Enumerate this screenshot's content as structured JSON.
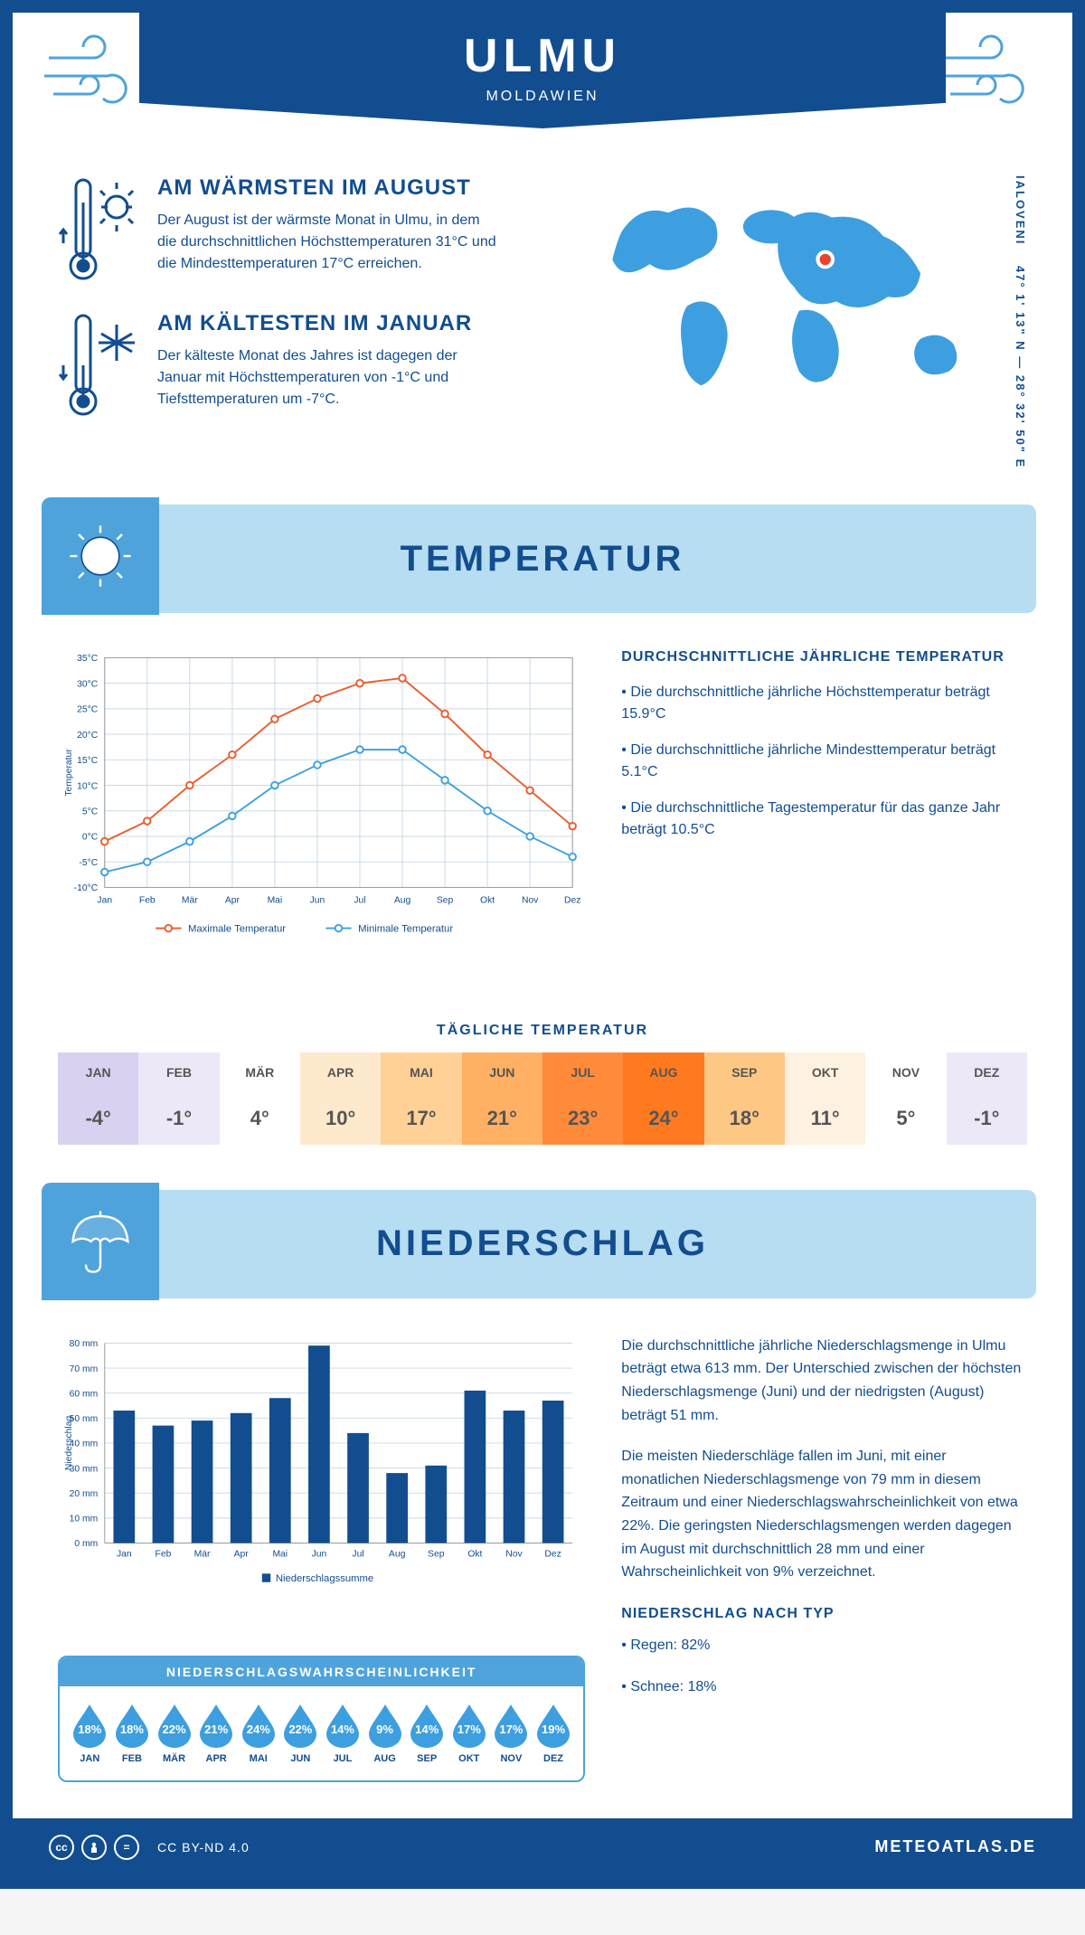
{
  "colors": {
    "primary": "#124d8f",
    "secondary": "#4fa3db",
    "light_blue": "#b7ddf2",
    "orange": "#e85c2a",
    "line_blue": "#3d9fe0"
  },
  "header": {
    "city": "ULMU",
    "country": "MOLDAWIEN"
  },
  "coordinates": "47° 1' 13\" N — 28° 32' 50\" E",
  "coords_sub": "IALOVENI",
  "intro": {
    "warm": {
      "title": "AM WÄRMSTEN IM AUGUST",
      "text": "Der August ist der wärmste Monat in Ulmu, in dem die durchschnittlichen Höchsttemperaturen 31°C und die Mindesttemperaturen 17°C erreichen."
    },
    "cold": {
      "title": "AM KÄLTESTEN IM JANUAR",
      "text": "Der kälteste Monat des Jahres ist dagegen der Januar mit Höchsttemperaturen von -1°C und Tiefsttemperaturen um -7°C."
    }
  },
  "temperature": {
    "section_title": "TEMPERATUR",
    "chart": {
      "type": "line",
      "months": [
        "Jan",
        "Feb",
        "Mär",
        "Apr",
        "Mai",
        "Jun",
        "Jul",
        "Aug",
        "Sep",
        "Okt",
        "Nov",
        "Dez"
      ],
      "series": [
        {
          "name": "Maximale Temperatur",
          "color": "#e85c2a",
          "values": [
            -1,
            3,
            10,
            16,
            23,
            27,
            30,
            31,
            24,
            16,
            9,
            2
          ]
        },
        {
          "name": "Minimale Temperatur",
          "color": "#3d9fe0",
          "values": [
            -7,
            -5,
            -1,
            4,
            10,
            14,
            17,
            17,
            11,
            5,
            0,
            -4
          ]
        }
      ],
      "ylim": [
        -10,
        35
      ],
      "ytick_step": 5,
      "y_suffix": "°C",
      "ylabel": "Temperatur",
      "grid_color": "#c8d8e6",
      "marker": "circle",
      "line_width": 2
    },
    "text": {
      "heading": "DURCHSCHNITTLICHE JÄHRLICHE TEMPERATUR",
      "b1": "• Die durchschnittliche jährliche Höchsttemperatur beträgt 15.9°C",
      "b2": "• Die durchschnittliche jährliche Mindesttemperatur beträgt 5.1°C",
      "b3": "• Die durchschnittliche Tagestemperatur für das ganze Jahr beträgt 10.5°C"
    },
    "daily": {
      "title": "TÄGLICHE TEMPERATUR",
      "months": [
        "JAN",
        "FEB",
        "MÄR",
        "APR",
        "MAI",
        "JUN",
        "JUL",
        "AUG",
        "SEP",
        "OKT",
        "NOV",
        "DEZ"
      ],
      "values": [
        "-4°",
        "-1°",
        "4°",
        "10°",
        "17°",
        "21°",
        "23°",
        "24°",
        "18°",
        "11°",
        "5°",
        "-1°"
      ],
      "colors": [
        "#d9d1f0",
        "#ece8f8",
        "#ffffff",
        "#ffe9cc",
        "#ffd197",
        "#ffb062",
        "#ff8a3a",
        "#ff7a1f",
        "#ffc784",
        "#fff1e0",
        "#ffffff",
        "#ece8f8"
      ]
    }
  },
  "precipitation": {
    "section_title": "NIEDERSCHLAG",
    "chart": {
      "type": "bar",
      "months": [
        "Jan",
        "Feb",
        "Mär",
        "Apr",
        "Mai",
        "Jun",
        "Jul",
        "Aug",
        "Sep",
        "Okt",
        "Nov",
        "Dez"
      ],
      "values": [
        53,
        47,
        49,
        52,
        58,
        79,
        44,
        28,
        31,
        61,
        53,
        57
      ],
      "bar_color": "#124d8f",
      "ylim": [
        0,
        80
      ],
      "ytick_step": 10,
      "y_suffix": " mm",
      "ylabel": "Niederschlag",
      "legend": "Niederschlagssumme",
      "grid_color": "#c8d8e6",
      "bar_width": 0.55
    },
    "text": {
      "p1": "Die durchschnittliche jährliche Niederschlagsmenge in Ulmu beträgt etwa 613 mm. Der Unterschied zwischen der höchsten Niederschlagsmenge (Juni) und der niedrigsten (August) beträgt 51 mm.",
      "p2": "Die meisten Niederschläge fallen im Juni, mit einer monatlichen Niederschlagsmenge von 79 mm in diesem Zeitraum und einer Niederschlagswahrscheinlichkeit von etwa 22%. Die geringsten Niederschlagsmengen werden dagegen im August mit durchschnittlich 28 mm und einer Wahrscheinlichkeit von 9% verzeichnet.",
      "type_heading": "NIEDERSCHLAG NACH TYP",
      "type1": "• Regen: 82%",
      "type2": "• Schnee: 18%"
    },
    "probability": {
      "title": "NIEDERSCHLAGSWAHRSCHEINLICHKEIT",
      "months": [
        "JAN",
        "FEB",
        "MÄR",
        "APR",
        "MAI",
        "JUN",
        "JUL",
        "AUG",
        "SEP",
        "OKT",
        "NOV",
        "DEZ"
      ],
      "values": [
        "18%",
        "18%",
        "22%",
        "21%",
        "24%",
        "22%",
        "14%",
        "9%",
        "14%",
        "17%",
        "17%",
        "19%"
      ],
      "drop_color": "#3d9fe0"
    }
  },
  "footer": {
    "license": "CC BY-ND 4.0",
    "site": "METEOATLAS.DE"
  }
}
